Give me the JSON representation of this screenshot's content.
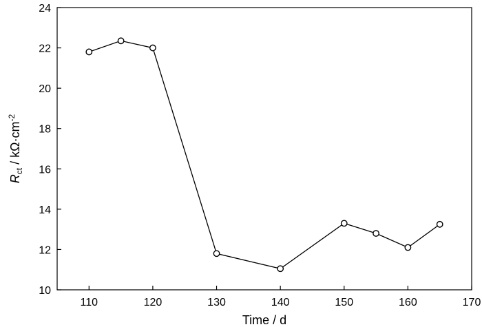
{
  "chart_data": {
    "type": "line",
    "title": "",
    "xlabel": "Time / d",
    "ylabel": {
      "symbol": "R",
      "subscript": "ct",
      "unit_base": " / kΩ·cm",
      "unit_exponent": "-2"
    },
    "xlim": [
      105,
      170
    ],
    "ylim": [
      10,
      24
    ],
    "xticks": [
      110,
      120,
      130,
      140,
      150,
      160,
      170
    ],
    "yticks": [
      10,
      12,
      14,
      16,
      18,
      20,
      22,
      24
    ],
    "grid": false,
    "legend": "none",
    "series": [
      {
        "marker": "open-circle",
        "color": "#000000",
        "x": [
          110,
          115,
          120,
          130,
          140,
          150,
          155,
          160,
          165
        ],
        "y": [
          21.8,
          22.35,
          22.0,
          11.8,
          11.05,
          13.3,
          12.8,
          12.1,
          13.25
        ]
      }
    ]
  }
}
